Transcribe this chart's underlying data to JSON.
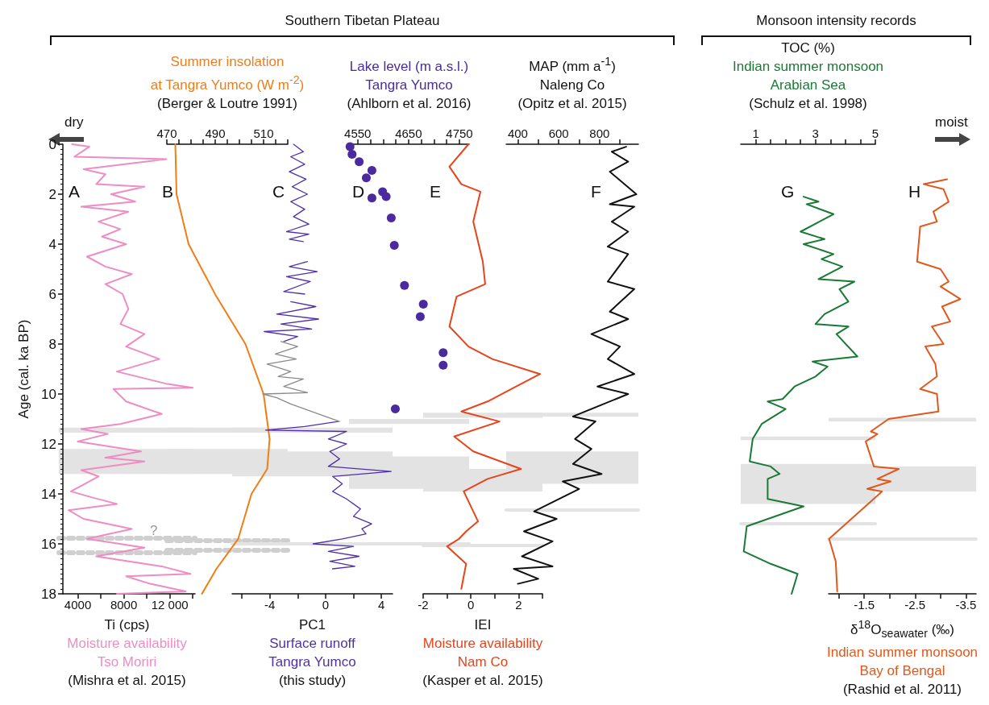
{
  "chart_data": [
    {
      "type": "other",
      "title": "Southern Tibetan Plateau",
      "annotations": [
        "dry"
      ]
    },
    {
      "type": "other",
      "title": "Monsoon intensity records",
      "annotations": [
        "moist"
      ]
    },
    {
      "type": "line",
      "title": "A",
      "xlabel": "Ti (cps)\nMoisture availability\nTso Moriri\n(Mishra et al. 2015)",
      "ylabel": "Age (cal. ka BP)",
      "xlim": [
        2700,
        14200
      ],
      "xticks": [
        4000,
        {
          "value": 6000,
          "label": null
        },
        8000,
        {
          "value": 10000,
          "label": null
        },
        {
          "value": 12000,
          "label": "12 000"
        },
        {
          "value": 14000,
          "label": null
        }
      ],
      "ylim": [
        18,
        0
      ],
      "yticks": [
        0,
        2,
        4,
        6,
        8,
        10,
        12,
        14,
        16,
        18
      ],
      "series": [
        {
          "color": "#ee8cc4",
          "x": [
            3500,
            5000,
            3700,
            11700,
            4500,
            6400,
            5600,
            9800,
            6900,
            9000,
            4300,
            8400,
            5800,
            7700,
            6100,
            8200,
            4800,
            6400,
            8700,
            6400,
            7900,
            8400,
            7700,
            9800,
            8200,
            11100,
            7400,
            11800,
            14000,
            7100,
            8200,
            11300,
            7700,
            4300,
            6600,
            4000,
            9500,
            6400,
            9800,
            4300,
            5800,
            3400,
            5300,
            7400,
            3200,
            4500,
            8700,
            4800,
            9800,
            5600,
            11300,
            13800,
            8200,
            10300,
            13400,
            7400
          ],
          "values": [
            0,
            0.1,
            0.5,
            0.6,
            1.0,
            1.2,
            1.6,
            1.7,
            2.0,
            2.3,
            2.5,
            2.7,
            3.1,
            3.4,
            3.7,
            4.0,
            4.5,
            4.9,
            5.2,
            5.6,
            6.0,
            6.6,
            7.2,
            7.6,
            8.1,
            8.6,
            9.1,
            9.6,
            9.75,
            9.8,
            10.3,
            10.8,
            11.2,
            11.4,
            11.6,
            11.9,
            12.3,
            12.55,
            12.7,
            13.05,
            13.3,
            13.9,
            14.15,
            14.4,
            14.65,
            15.0,
            15.4,
            15.8,
            16.15,
            16.5,
            16.9,
            17.2,
            17.3,
            17.6,
            17.9,
            18.0
          ]
        }
      ],
      "bands": [
        {
          "axis": "y",
          "from": 11.35,
          "to": 11.55,
          "color": "#e3e3e3"
        },
        {
          "axis": "y",
          "from": 12.2,
          "to": 13.2,
          "color": "#e3e3e3"
        }
      ],
      "ref_lines": [
        {
          "axis": "y",
          "value": 15.75,
          "color": "#cfcfcf",
          "line_style": "dotted"
        },
        {
          "axis": "y",
          "value": 16.35,
          "color": "#cfcfcf",
          "line_style": "dotted"
        }
      ],
      "annotations": [
        "?"
      ],
      "tick_labels": "xy"
    },
    {
      "type": "line",
      "title": "B",
      "xlabel": "Summer insolation\nat Tangra Yumco (W m$^{-2}$)\n(Berger & Loutre 1991)",
      "xlim": [
        470,
        520
      ],
      "xticks": [
        470,
        {
          "value": 475,
          "label": null
        },
        {
          "value": 480,
          "label": null
        },
        {
          "value": 485,
          "label": null
        },
        490,
        {
          "value": 495,
          "label": null
        },
        {
          "value": 500,
          "label": null
        },
        {
          "value": 505,
          "label": null
        },
        510,
        {
          "value": 515,
          "label": null
        },
        {
          "value": 520,
          "label": null
        }
      ],
      "ylim": [
        18,
        0
      ],
      "tick_labels": "x",
      "series": [
        {
          "color": "#f07d16",
          "x": [
            473.5,
            474,
            479,
            490.5,
            502.5,
            510,
            512.5,
            511.5,
            505,
            499.5,
            490.5,
            484.5
          ],
          "values": [
            0,
            2,
            4,
            6.1,
            8,
            10,
            11.8,
            13,
            14,
            15.8,
            17,
            18
          ]
        }
      ],
      "bands": [
        {
          "axis": "y",
          "from": 11.35,
          "to": 11.55,
          "color": "#e3e3e3"
        },
        {
          "axis": "y",
          "from": 12.2,
          "to": 13.2,
          "color": "#e3e3e3"
        }
      ],
      "ref_lines": [
        {
          "axis": "y",
          "value": 15.85,
          "color": "#cfcfcf",
          "line_style": "dotted"
        },
        {
          "axis": "y",
          "value": 16.25,
          "color": "#cfcfcf",
          "line_style": "dotted"
        }
      ]
    },
    {
      "type": "line",
      "title": "C",
      "xlabel": "PC1\nSurface runoff\nTangra Yumco\n(this study)",
      "xlim": [
        -6.7,
        4.8
      ],
      "xticks": [
        {
          "value": -6,
          "label": null
        },
        -4,
        {
          "value": -2,
          "label": null
        },
        0,
        {
          "value": 2,
          "label": null
        },
        4
      ],
      "ylim": [
        18,
        0
      ],
      "tick_labels": "x",
      "series": [
        {
          "color": "#5030a8",
          "x": [
            -2.3,
            -1.6,
            -2.5,
            -1.5,
            -2.6,
            -1.4,
            -2.4,
            -1.3,
            -2.5,
            -1.5,
            -2.3,
            -1.2,
            -2.8,
            -1.2,
            -2.6,
            -1.6,
            null,
            -1.3,
            -2.6,
            -0.6,
            -2.8,
            -1.1,
            -3.0,
            -1.5,
            null,
            -2.5,
            -0.7,
            -3.5,
            -0.5,
            -3.2,
            -1.0,
            -4.4,
            -2.0,
            -3.0,
            null,
            0.9,
            -1.5,
            -4.3,
            1.5,
            0.2,
            1.5,
            0.3,
            1.0,
            0.2,
            4.7,
            0.5,
            1.2,
            0.5,
            1.5,
            2.5,
            2.0,
            3.3,
            2.6,
            2.9,
            1.2,
            -0.9,
            2.0,
            0.2,
            2.4,
            0.3,
            2.1,
            0.5
          ],
          "values": [
            0,
            0.3,
            0.5,
            0.8,
            1.1,
            1.4,
            1.7,
            2.0,
            2.3,
            2.6,
            2.9,
            3.2,
            3.5,
            3.6,
            3.8,
            3.9,
            null,
            4.7,
            4.9,
            5.1,
            5.3,
            5.5,
            5.9,
            6.0,
            null,
            6.3,
            6.5,
            6.8,
            7.0,
            7.2,
            7.4,
            7.5,
            7.7,
            7.9,
            null,
            11.1,
            11.3,
            11.45,
            11.5,
            11.8,
            12.0,
            12.3,
            12.6,
            12.9,
            13.1,
            13.3,
            13.6,
            13.9,
            14.2,
            14.6,
            14.9,
            15.2,
            15.4,
            15.6,
            15.8,
            16.0,
            16.1,
            16.3,
            16.5,
            16.7,
            16.9,
            17.0
          ]
        },
        {
          "color": "#8a8a8a",
          "x": [
            -3.2,
            -2.0,
            -3.6,
            -2.1,
            -4.2,
            -2.5,
            -3.4,
            -1.6,
            -3.0,
            -1.3,
            -4.5,
            -3.5,
            -2.5,
            -0.5,
            1.0
          ],
          "values": [
            7.9,
            8.1,
            8.4,
            8.6,
            8.8,
            9.1,
            9.3,
            9.4,
            9.7,
            9.95,
            10.0,
            10.15,
            10.4,
            10.8,
            11.1
          ]
        }
      ],
      "bands": [
        {
          "axis": "y",
          "from": 11.35,
          "to": 11.55,
          "color": "#e3e3e3"
        },
        {
          "axis": "y",
          "from": 12.3,
          "to": 13.3,
          "color": "#e3e3e3"
        }
      ],
      "ref_lines": [
        {
          "axis": "y",
          "value": 16.0,
          "color": "#e3e3e3",
          "line_style": "solid"
        }
      ]
    },
    {
      "type": "scatter",
      "title": "D",
      "xlabel": "Lake level (m a.s.l.)\nTangra Yumco\n(Ahlborn et al. 2016)",
      "xlim": [
        4533,
        4769
      ],
      "xticks": [
        4550,
        {
          "value": 4575,
          "label": null
        },
        {
          "value": 4600,
          "label": null
        },
        {
          "value": 4625,
          "label": null
        },
        4650,
        {
          "value": 4675,
          "label": null
        },
        {
          "value": 4700,
          "label": null
        },
        {
          "value": 4725,
          "label": null
        },
        4750
      ],
      "ylim": [
        18,
        0
      ],
      "tick_labels": "x",
      "marker": "circle",
      "series": [
        {
          "color": "#4a2a9e",
          "x": [
            4535,
            4539,
            4553,
            4578,
            4567,
            4599,
            4606,
            4578,
            4616,
            4622,
            4642,
            4679,
            4673,
            4718,
            4718,
            4624
          ],
          "values": [
            0.1,
            0.4,
            0.7,
            1.05,
            1.35,
            1.9,
            2.1,
            2.15,
            2.95,
            4.05,
            5.65,
            6.4,
            6.9,
            8.35,
            8.85,
            10.6
          ]
        }
      ],
      "bands": [
        {
          "axis": "y",
          "from": 11.0,
          "to": 11.2,
          "color": "#e3e3e3"
        },
        {
          "axis": "y",
          "from": 12.5,
          "to": 13.8,
          "color": "#e3e3e3"
        }
      ],
      "ref_lines": [
        {
          "axis": "y",
          "value": 16.0,
          "color": "#e3e3e3",
          "line_style": "solid"
        }
      ]
    },
    {
      "type": "line",
      "title": "E",
      "xlabel": "IEI\nMoisture availability\nNam Co\n(Kasper et al. 2015)",
      "xlim": [
        -2,
        3
      ],
      "xticks": [
        -2,
        {
          "value": -1,
          "label": null
        },
        0,
        {
          "value": 1,
          "label": null
        },
        2,
        {
          "value": 3,
          "label": null
        }
      ],
      "ylim": [
        18,
        0
      ],
      "tick_labels": "x",
      "series": [
        {
          "color": "#e8441c",
          "x": [
            -0.1,
            -0.9,
            -0.4,
            0.4,
            0.1,
            0.5,
            0.6,
            -0.6,
            -0.9,
            -0.1,
            0.9,
            2.9,
            1.9,
            0.7,
            -0.4,
            1.2,
            -0.7,
            0.1,
            2.1,
            0.7,
            -0.3,
            0.3,
            -0.2,
            -0.5,
            -1.0,
            -0.2,
            -0.4
          ],
          "values": [
            0,
            0.9,
            1.6,
            1.9,
            3.1,
            4.7,
            5.6,
            6.1,
            7.3,
            8.1,
            8.6,
            9.2,
            9.7,
            10.3,
            10.7,
            11.1,
            11.7,
            12.3,
            13.0,
            13.4,
            13.9,
            15.1,
            15.5,
            15.8,
            16.1,
            16.8,
            17.8
          ]
        }
      ],
      "bands": [
        {
          "axis": "y",
          "from": 10.75,
          "to": 10.95,
          "color": "#e3e3e3"
        },
        {
          "axis": "y",
          "from": 13.0,
          "to": 13.9,
          "color": "#e3e3e3"
        }
      ],
      "ref_lines": [
        {
          "axis": "y",
          "value": 16.05,
          "color": "#e3e3e3",
          "line_style": "solid"
        }
      ]
    },
    {
      "type": "line",
      "title": "F",
      "xlabel": "MAP (mm a$^{-1}$)\nNaleng Co\n(Opitz et al. 2015)",
      "xlim": [
        343,
        990
      ],
      "xticks": [
        400,
        {
          "value": 500,
          "label": null
        },
        600,
        {
          "value": 700,
          "label": null
        },
        800,
        {
          "value": 900,
          "label": null
        }
      ],
      "ylim": [
        18,
        0
      ],
      "tick_labels": "x",
      "series": [
        {
          "color": "#111111",
          "x": [
            930,
            860,
            940,
            850,
            980,
            850,
            970,
            860,
            940,
            840,
            940,
            840,
            970,
            850,
            940,
            760,
            900,
            840,
            970,
            790,
            940,
            670,
            780,
            680,
            760,
            670,
            810,
            620,
            700,
            480,
            590,
            430,
            570,
            420,
            570,
            380,
            500,
            400
          ],
          "values": [
            0.1,
            0.3,
            0.7,
            1.1,
            2.0,
            2.4,
            2.5,
            3.1,
            3.5,
            4.1,
            4.4,
            5.5,
            5.8,
            6.7,
            7.0,
            7.6,
            8.1,
            8.6,
            9.2,
            9.7,
            10.0,
            10.9,
            11.1,
            11.8,
            12.2,
            12.8,
            13.2,
            13.5,
            13.8,
            14.7,
            15.0,
            15.5,
            15.9,
            16.5,
            16.9,
            17.0,
            17.4,
            17.6
          ]
        }
      ],
      "bands": [
        {
          "axis": "y",
          "from": 10.75,
          "to": 10.9,
          "color": "#e3e3e3"
        },
        {
          "axis": "y",
          "from": 12.3,
          "to": 13.6,
          "color": "#e3e3e3"
        }
      ],
      "ref_lines": [
        {
          "axis": "y",
          "value": 14.65,
          "color": "#e3e3e3",
          "line_style": "solid"
        }
      ]
    },
    {
      "type": "line",
      "title": "G",
      "xlabel": "TOC (%)\nIndian summer monsoon\nArabian Sea\n(Schulz et al. 1998)",
      "xlim": [
        0.5,
        5
      ],
      "xticks": [
        1,
        {
          "value": 1.5,
          "label": null
        },
        {
          "value": 2,
          "label": null
        },
        {
          "value": 2.5,
          "label": null
        },
        3,
        {
          "value": 3.5,
          "label": null
        },
        {
          "value": 4,
          "label": null
        },
        {
          "value": 4.5,
          "label": null
        },
        5
      ],
      "ylim": [
        18,
        0
      ],
      "tick_labels": "x",
      "series": [
        {
          "color": "#1a7a35",
          "x": [
            2.6,
            3.1,
            2.7,
            3.6,
            2.5,
            3.3,
            2.6,
            3.6,
            3.2,
            3.9,
            3.1,
            4.3,
            3.8,
            4.1,
            3.3,
            3.0,
            4.1,
            3.7,
            4.4,
            2.9,
            3.4,
            3.0,
            2.3,
            1.9,
            1.4,
            2.0,
            1.2,
            0.9,
            0.8,
            1.5,
            1.8,
            1.4,
            1.4,
            2.6,
            0.7,
            0.6,
            1.5,
            2.4,
            2.2
          ],
          "values": [
            2.1,
            2.3,
            2.4,
            2.8,
            3.5,
            3.8,
            4.0,
            4.4,
            4.6,
            4.9,
            5.4,
            5.5,
            5.8,
            6.3,
            6.8,
            7.2,
            7.3,
            7.6,
            8.5,
            8.7,
            8.9,
            9.3,
            9.7,
            10.2,
            10.3,
            10.6,
            11.2,
            11.8,
            12.7,
            12.9,
            13.2,
            13.4,
            14.2,
            14.5,
            15.3,
            16.3,
            16.8,
            17.2,
            18.0
          ]
        }
      ],
      "bands": [
        {
          "axis": "y",
          "from": 11.7,
          "to": 11.85,
          "color": "#e3e3e3"
        },
        {
          "axis": "y",
          "from": 12.8,
          "to": 14.4,
          "color": "#e3e3e3"
        }
      ],
      "ref_lines": [
        {
          "axis": "y",
          "value": 15.2,
          "color": "#e3e3e3",
          "line_style": "solid"
        }
      ]
    },
    {
      "type": "line",
      "title": "H",
      "xlabel": "δ$^{18}$O$_{seawater}$ (‰)\nIndian summer monsoon\nBay of Bengal\n(Rashid et al. 2011)",
      "xlim": [
        -0.8,
        -3.7
      ],
      "xticks": [
        {
          "value": -1,
          "label": null
        },
        -1.5,
        {
          "value": -2,
          "label": null
        },
        -2.5,
        {
          "value": -3,
          "label": null
        },
        -3.5
      ],
      "ylim": [
        18,
        0
      ],
      "tick_labels": "x",
      "series": [
        {
          "color": "#e0581c",
          "x": [
            -3.13,
            -2.67,
            -3.06,
            -3.16,
            -2.86,
            -2.93,
            -2.6,
            -2.54,
            -3.0,
            -3.16,
            -3.0,
            -3.39,
            -3.03,
            -3.19,
            -2.83,
            -3.06,
            -2.7,
            -2.9,
            -2.93,
            -2.6,
            -2.93,
            -2.96,
            -1.98,
            -1.63,
            -1.76,
            -1.53,
            -1.69,
            -2.18,
            -1.76,
            -2.02,
            -1.56,
            -1.85,
            -0.81,
            -0.94,
            -0.97
          ],
          "values": [
            1.4,
            1.6,
            1.8,
            2.3,
            2.7,
            3.1,
            3.3,
            4.7,
            5.0,
            5.5,
            5.7,
            6.2,
            6.5,
            7.1,
            7.3,
            8.0,
            8.1,
            8.8,
            9.3,
            9.8,
            10.0,
            10.7,
            11.0,
            11.5,
            11.6,
            11.9,
            12.9,
            13.0,
            13.4,
            13.5,
            13.8,
            13.9,
            15.8,
            16.7,
            17.9
          ]
        }
      ],
      "bands": [
        {
          "axis": "y",
          "from": 10.95,
          "to": 11.1,
          "color": "#e3e3e3"
        },
        {
          "axis": "y",
          "from": 12.9,
          "to": 13.9,
          "color": "#e3e3e3"
        }
      ],
      "ref_lines": [
        {
          "axis": "y",
          "value": 15.8,
          "color": "#e3e3e3",
          "line_style": "solid"
        }
      ]
    }
  ]
}
